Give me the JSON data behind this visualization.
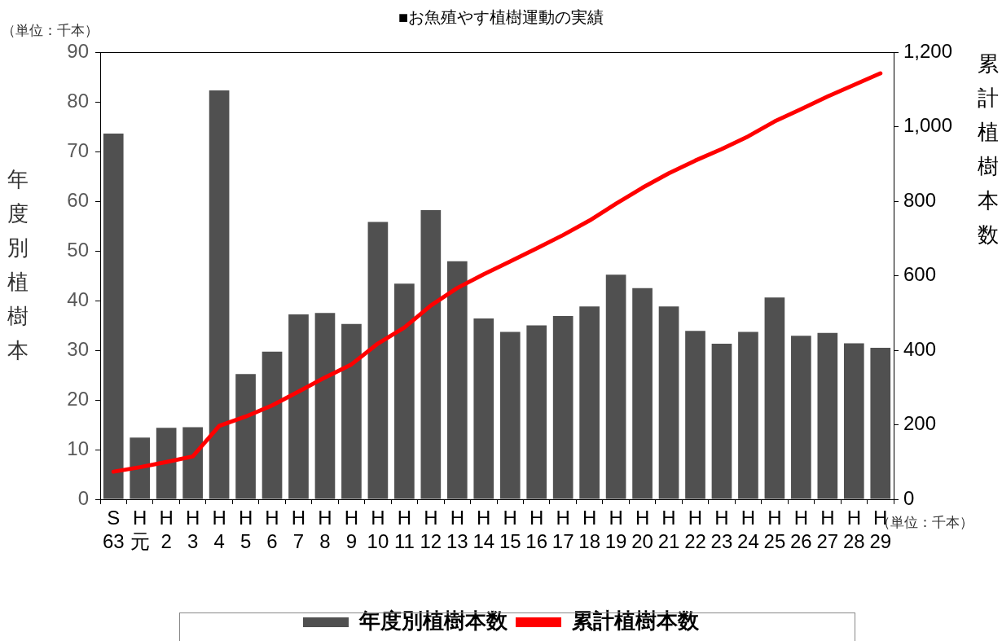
{
  "chart_data": {
    "type": "bar",
    "title": "■お魚殖やす植樹運動の実績",
    "ylabel": "年度別植樹本",
    "y2label": "累計植樹本数",
    "annotations": [
      "（単位：千本）",
      "（単位：千本）"
    ],
    "categories": [
      "S\n63",
      "H\n元",
      "H\n2",
      "H\n3",
      "H\n4",
      "H\n5",
      "H\n6",
      "H\n7",
      "H\n8",
      "H\n9",
      "H\n10",
      "H\n11",
      "H\n12",
      "H\n13",
      "H\n14",
      "H\n15",
      "H\n16",
      "H\n17",
      "H\n18",
      "H\n19",
      "H\n20",
      "H\n21",
      "H\n22",
      "H\n23",
      "H\n24",
      "H\n25",
      "H\n26",
      "H\n27",
      "H\n28",
      "H\n29"
    ],
    "series": [
      {
        "name": "年度別植樹本数",
        "color": "#505050",
        "values": [
          73.6,
          12.4,
          14.4,
          14.5,
          82.3,
          25.2,
          29.7,
          37.2,
          37.5,
          35.3,
          55.8,
          43.4,
          58.2,
          47.9,
          36.4,
          33.7,
          35.0,
          36.9,
          38.8,
          45.2,
          42.5,
          38.8,
          33.9,
          31.3,
          33.7,
          40.6,
          32.9,
          33.5,
          31.4,
          30.5
        ]
      },
      {
        "name": "累計植樹本数",
        "type": "line",
        "axis": "y2",
        "color": "#ff0000",
        "values": [
          74,
          86,
          100,
          115,
          197,
          222,
          252,
          289,
          327,
          362,
          418,
          461,
          520,
          567,
          604,
          638,
          673,
          709,
          748,
          793,
          836,
          875,
          909,
          940,
          974,
          1014,
          1047,
          1081,
          1112,
          1143
        ]
      }
    ],
    "ylim": [
      0,
      90
    ],
    "yticks": [
      0,
      10,
      20,
      30,
      40,
      50,
      60,
      70,
      80,
      90
    ],
    "y2lim": [
      0,
      1200
    ],
    "y2ticks": [
      0,
      {
        "value": 200,
        "label": "200"
      },
      {
        "value": 400,
        "label": "400"
      },
      {
        "value": 600,
        "label": "600"
      },
      {
        "value": 800,
        "label": "800"
      },
      {
        "value": 1000,
        "label": "1,000"
      },
      {
        "value": 1200,
        "label": "1,200"
      }
    ],
    "grid": false,
    "legend": "bottom",
    "marker": "none",
    "line_style": "solid"
  }
}
